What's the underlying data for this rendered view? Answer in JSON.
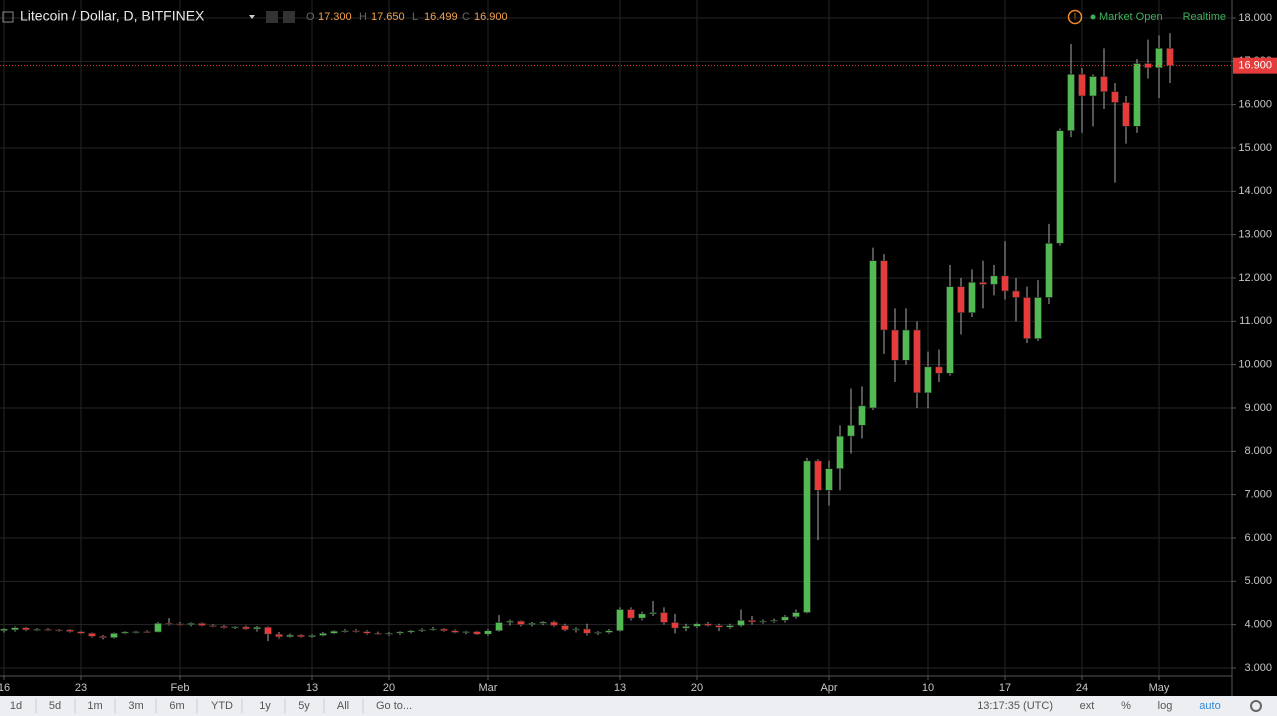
{
  "header": {
    "title": "Litecoin / Dollar, D, BITFINEX",
    "ohlc": [
      [
        "O",
        "17.300"
      ],
      [
        "H",
        "17.650"
      ],
      [
        "L",
        "16.499"
      ],
      [
        "C",
        "16.900"
      ]
    ],
    "status": "Market Open",
    "feed": "Realtime"
  },
  "toolbar": {
    "ranges": [
      "1d",
      "5d",
      "1m",
      "3m",
      "6m",
      "YTD",
      "1y",
      "5y",
      "All"
    ],
    "goto": "Go to...",
    "clock": "13:17:35 (UTC)",
    "options": [
      "ext",
      "%",
      "log",
      "auto"
    ]
  },
  "chart_data": {
    "type": "candlestick",
    "categories": [
      "Jan 16",
      "Jan 17",
      "Jan 18",
      "Jan 19",
      "Jan 20",
      "Jan 21",
      "Jan 22",
      "Jan 23",
      "Jan 24",
      "Jan 25",
      "Jan 26",
      "Jan 27",
      "Jan 28",
      "Jan 29",
      "Jan 30",
      "Jan 31",
      "Feb 1",
      "Feb 2",
      "Feb 3",
      "Feb 4",
      "Feb 5",
      "Feb 6",
      "Feb 7",
      "Feb 8",
      "Feb 9",
      "Feb 10",
      "Feb 11",
      "Feb 12",
      "Feb 13",
      "Feb 14",
      "Feb 15",
      "Feb 16",
      "Feb 17",
      "Feb 18",
      "Feb 19",
      "Feb 20",
      "Feb 21",
      "Feb 22",
      "Feb 23",
      "Feb 24",
      "Feb 25",
      "Feb 26",
      "Feb 27",
      "Feb 28",
      "Mar 1",
      "Mar 2",
      "Mar 3",
      "Mar 4",
      "Mar 5",
      "Mar 6",
      "Mar 7",
      "Mar 8",
      "Mar 9",
      "Mar 10",
      "Mar 11",
      "Mar 12",
      "Mar 13",
      "Mar 14",
      "Mar 15",
      "Mar 16",
      "Mar 17",
      "Mar 18",
      "Mar 19",
      "Mar 20",
      "Mar 21",
      "Mar 22",
      "Mar 23",
      "Mar 24",
      "Mar 25",
      "Mar 26",
      "Mar 27",
      "Mar 28",
      "Mar 29",
      "Mar 30",
      "Mar 31",
      "Apr 1",
      "Apr 2",
      "Apr 3",
      "Apr 4",
      "Apr 5",
      "Apr 6",
      "Apr 7",
      "Apr 8",
      "Apr 9",
      "Apr 10",
      "Apr 11",
      "Apr 12",
      "Apr 13",
      "Apr 14",
      "Apr 15",
      "Apr 16",
      "Apr 17",
      "Apr 18",
      "Apr 19",
      "Apr 20",
      "Apr 21",
      "Apr 22",
      "Apr 23",
      "Apr 24",
      "Apr 25",
      "Apr 26",
      "Apr 27",
      "Apr 28",
      "Apr 29",
      "Apr 30",
      "May 1",
      "May 2"
    ],
    "open": [
      3.86,
      3.88,
      3.93,
      3.88,
      3.89,
      3.88,
      3.88,
      3.84,
      3.8,
      3.73,
      3.7,
      3.8,
      3.83,
      3.84,
      3.83,
      4.03,
      4.02,
      4.0,
      4.03,
      3.98,
      3.96,
      3.93,
      3.95,
      3.9,
      3.94,
      3.78,
      3.72,
      3.76,
      3.72,
      3.75,
      3.8,
      3.85,
      3.86,
      3.84,
      3.8,
      3.78,
      3.8,
      3.83,
      3.86,
      3.88,
      3.9,
      3.86,
      3.82,
      3.84,
      3.78,
      3.86,
      4.05,
      4.08,
      4.0,
      4.03,
      4.06,
      3.98,
      3.88,
      3.9,
      3.8,
      3.82,
      3.86,
      4.35,
      4.15,
      4.25,
      4.28,
      4.05,
      3.92,
      3.96,
      4.02,
      3.98,
      3.94,
      3.98,
      4.1,
      4.06,
      4.08,
      4.1,
      4.18,
      4.28,
      7.78,
      7.1,
      7.6,
      8.35,
      8.6,
      9.0,
      12.4,
      10.8,
      10.1,
      10.8,
      9.35,
      9.95,
      9.8,
      11.8,
      11.2,
      11.9,
      11.85,
      12.05,
      11.7,
      11.55,
      10.6,
      11.55,
      12.8,
      15.4,
      16.7,
      16.2,
      16.65,
      16.3,
      16.05,
      15.5,
      16.95,
      16.85,
      17.3
    ],
    "high": [
      3.92,
      3.96,
      3.95,
      3.92,
      3.92,
      3.9,
      3.9,
      3.86,
      3.82,
      3.76,
      3.82,
      3.85,
      3.86,
      3.87,
      4.06,
      4.15,
      4.06,
      4.05,
      4.05,
      4.01,
      3.99,
      3.97,
      3.98,
      3.97,
      3.96,
      3.83,
      3.8,
      3.78,
      3.78,
      3.83,
      3.87,
      3.9,
      3.9,
      3.87,
      3.84,
      3.83,
      3.85,
      3.88,
      3.92,
      3.95,
      3.92,
      3.89,
      3.86,
      3.86,
      3.9,
      4.22,
      4.12,
      4.1,
      4.06,
      4.08,
      4.09,
      4.02,
      3.94,
      4.02,
      3.85,
      3.9,
      4.4,
      4.4,
      4.3,
      4.55,
      4.4,
      4.25,
      4.02,
      4.05,
      4.06,
      4.02,
      4.02,
      4.35,
      4.2,
      4.12,
      4.14,
      4.22,
      4.35,
      7.85,
      7.82,
      7.78,
      8.6,
      9.45,
      9.5,
      12.7,
      12.55,
      11.3,
      11.3,
      11.0,
      10.3,
      10.35,
      12.3,
      12.0,
      12.2,
      12.4,
      12.3,
      12.85,
      12.0,
      11.8,
      11.95,
      13.25,
      15.45,
      17.4,
      16.85,
      16.7,
      17.3,
      16.5,
      16.2,
      17.05,
      17.5,
      17.6,
      17.65
    ],
    "low": [
      3.82,
      3.84,
      3.85,
      3.85,
      3.85,
      3.84,
      3.82,
      3.78,
      3.7,
      3.66,
      3.68,
      3.78,
      3.8,
      3.81,
      3.82,
      3.98,
      3.98,
      3.96,
      3.96,
      3.94,
      3.91,
      3.9,
      3.88,
      3.84,
      3.62,
      3.68,
      3.7,
      3.7,
      3.7,
      3.73,
      3.78,
      3.82,
      3.82,
      3.77,
      3.76,
      3.74,
      3.76,
      3.8,
      3.83,
      3.86,
      3.84,
      3.8,
      3.78,
      3.76,
      3.74,
      3.84,
      3.98,
      3.96,
      3.96,
      3.99,
      3.95,
      3.85,
      3.82,
      3.75,
      3.76,
      3.79,
      3.84,
      4.1,
      4.1,
      4.2,
      4.0,
      3.8,
      3.85,
      3.92,
      3.96,
      3.85,
      3.9,
      3.95,
      4.0,
      4.02,
      4.04,
      4.05,
      4.14,
      4.26,
      5.95,
      6.75,
      7.1,
      7.95,
      8.3,
      8.95,
      10.25,
      9.6,
      10.0,
      9.0,
      9.0,
      9.6,
      9.75,
      10.7,
      11.1,
      11.3,
      11.6,
      11.5,
      11.0,
      10.5,
      10.55,
      11.4,
      12.75,
      15.25,
      15.35,
      15.5,
      15.9,
      14.2,
      15.1,
      15.35,
      16.6,
      16.15,
      16.499
    ],
    "close": [
      3.9,
      3.93,
      3.88,
      3.89,
      3.88,
      3.87,
      3.84,
      3.8,
      3.73,
      3.7,
      3.8,
      3.83,
      3.84,
      3.83,
      4.03,
      4.02,
      4.0,
      4.03,
      3.98,
      3.96,
      3.93,
      3.95,
      3.9,
      3.94,
      3.78,
      3.72,
      3.76,
      3.72,
      3.75,
      3.8,
      3.85,
      3.86,
      3.84,
      3.8,
      3.78,
      3.8,
      3.83,
      3.86,
      3.88,
      3.9,
      3.86,
      3.82,
      3.84,
      3.78,
      3.86,
      4.05,
      4.08,
      4.0,
      4.03,
      4.06,
      3.98,
      3.88,
      3.9,
      3.8,
      3.82,
      3.86,
      4.35,
      4.15,
      4.25,
      4.28,
      4.05,
      3.92,
      3.96,
      4.02,
      3.98,
      3.94,
      3.98,
      4.1,
      4.06,
      4.08,
      4.1,
      4.18,
      4.28,
      7.78,
      7.1,
      7.6,
      8.35,
      8.6,
      9.05,
      12.4,
      10.8,
      10.1,
      10.8,
      9.35,
      9.95,
      9.8,
      11.8,
      11.2,
      11.9,
      11.85,
      12.05,
      11.7,
      11.55,
      10.6,
      11.55,
      12.8,
      15.4,
      16.7,
      16.2,
      16.65,
      16.3,
      16.05,
      15.5,
      16.95,
      16.85,
      17.3,
      16.9
    ],
    "up_color": "#53b953",
    "down_color": "#e53b3b",
    "last_label": "16.900",
    "ylim": [
      2.815,
      18.415
    ],
    "yticks": [
      {
        "value": 3,
        "label": "3.000"
      },
      {
        "value": 4,
        "label": "4.000"
      },
      {
        "value": 5,
        "label": "5.000"
      },
      {
        "value": 6,
        "label": "6.000"
      },
      {
        "value": 7,
        "label": "7.000"
      },
      {
        "value": 8,
        "label": "8.000"
      },
      {
        "value": 9,
        "label": "9.000"
      },
      {
        "value": 10,
        "label": "10.000"
      },
      {
        "value": 11,
        "label": "11.000"
      },
      {
        "value": 12,
        "label": "12.000"
      },
      {
        "value": 13,
        "label": "13.000"
      },
      {
        "value": 14,
        "label": "14.000"
      },
      {
        "value": 15,
        "label": "15.000"
      },
      {
        "value": 16,
        "label": "16.000"
      },
      {
        "value": 17,
        "label": "17.000"
      },
      {
        "value": 18,
        "label": "18.000"
      }
    ],
    "xticks": [
      {
        "value": "Jan 16",
        "label": "16"
      },
      {
        "value": "Jan 23",
        "label": "23"
      },
      {
        "value": "Feb 1",
        "label": "Feb"
      },
      {
        "value": "Feb 13",
        "label": "13"
      },
      {
        "value": "Feb 20",
        "label": "20"
      },
      {
        "value": "Mar 1",
        "label": "Mar"
      },
      {
        "value": "Mar 13",
        "label": "13"
      },
      {
        "value": "Mar 20",
        "label": "20"
      },
      {
        "value": "Apr 1",
        "label": "Apr"
      },
      {
        "value": "Apr 10",
        "label": "10"
      },
      {
        "value": "Apr 17",
        "label": "17"
      },
      {
        "value": "Apr 24",
        "label": "24"
      },
      {
        "value": "May 1",
        "label": "May"
      }
    ],
    "grid": true
  }
}
